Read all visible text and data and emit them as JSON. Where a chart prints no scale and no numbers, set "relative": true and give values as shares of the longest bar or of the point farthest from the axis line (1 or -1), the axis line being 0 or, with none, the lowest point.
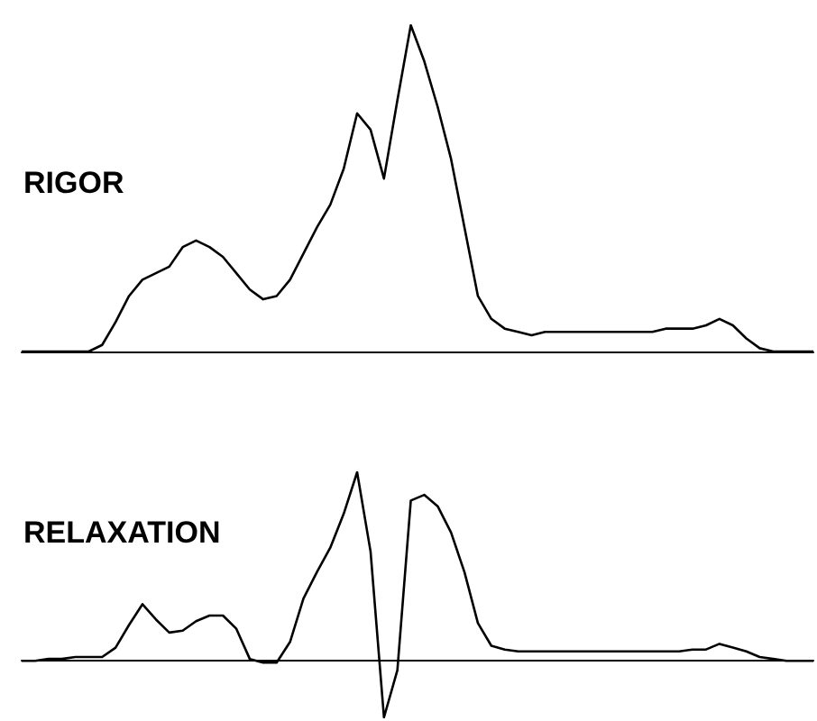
{
  "chart_data": [
    {
      "type": "line",
      "title": "RIGOR",
      "relative": true,
      "color": "#000000",
      "categories": [
        null,
        null,
        null,
        null,
        null,
        null,
        null,
        null,
        null,
        null,
        null,
        null,
        null,
        null,
        null,
        null,
        null,
        null,
        null,
        null,
        null,
        null,
        null,
        null,
        null,
        null,
        null,
        null,
        null,
        null,
        null,
        null,
        null,
        null,
        null,
        null,
        null,
        null,
        null,
        null,
        null,
        null,
        null,
        null,
        null,
        null,
        null,
        null,
        null,
        null,
        null,
        null,
        null,
        null,
        null,
        null,
        null,
        null,
        null,
        null
      ],
      "values": [
        0,
        0,
        0,
        0,
        0,
        0,
        0.02,
        0.09,
        0.17,
        0.22,
        0.24,
        0.26,
        0.32,
        0.34,
        0.32,
        0.29,
        0.24,
        0.19,
        0.16,
        0.17,
        0.22,
        0.3,
        0.38,
        0.45,
        0.56,
        0.73,
        0.68,
        0.53,
        0.77,
        1,
        0.89,
        0.75,
        0.59,
        0.38,
        0.17,
        0.1,
        0.07,
        0.06,
        0.05,
        0.06,
        0.06,
        0.06,
        0.06,
        0.06,
        0.06,
        0.06,
        0.06,
        0.06,
        0.07,
        0.07,
        0.07,
        0.08,
        0.1,
        0.08,
        0.04,
        0.01,
        0,
        0,
        0,
        0
      ]
    },
    {
      "type": "line",
      "title": "RELAXATION",
      "relative": true,
      "color": "#000000",
      "categories": [
        null,
        null,
        null,
        null,
        null,
        null,
        null,
        null,
        null,
        null,
        null,
        null,
        null,
        null,
        null,
        null,
        null,
        null,
        null,
        null,
        null,
        null,
        null,
        null,
        null,
        null,
        null,
        null,
        null,
        null,
        null,
        null,
        null,
        null,
        null,
        null,
        null,
        null,
        null,
        null,
        null,
        null,
        null,
        null,
        null,
        null,
        null,
        null,
        null,
        null,
        null,
        null,
        null,
        null,
        null,
        null,
        null,
        null,
        null,
        null
      ],
      "values": [
        0,
        0,
        0.01,
        0.01,
        0.02,
        0.02,
        0.02,
        0.07,
        0.19,
        0.3,
        0.22,
        0.15,
        0.16,
        0.21,
        0.24,
        0.24,
        0.17,
        0.01,
        -0.01,
        -0.01,
        0.1,
        0.33,
        0.47,
        0.6,
        0.78,
        1,
        0.58,
        -0.3,
        -0.05,
        0.85,
        0.88,
        0.82,
        0.68,
        0.47,
        0.2,
        0.08,
        0.06,
        0.05,
        0.05,
        0.05,
        0.05,
        0.05,
        0.05,
        0.05,
        0.05,
        0.05,
        0.05,
        0.05,
        0.05,
        0.05,
        0.06,
        0.06,
        0.09,
        0.07,
        0.05,
        0.02,
        0.01,
        0,
        0,
        0
      ]
    }
  ]
}
